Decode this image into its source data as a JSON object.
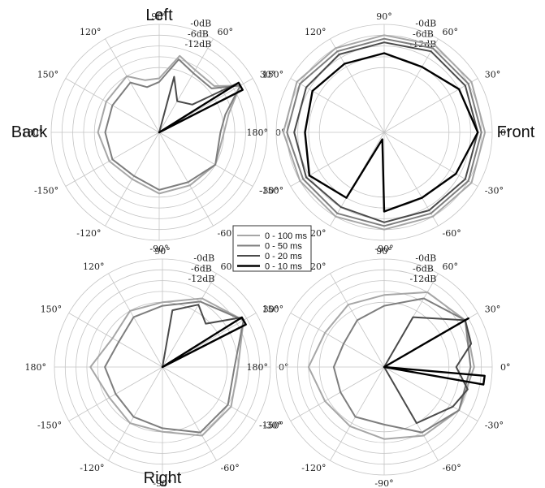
{
  "side_labels": {
    "left": "Left",
    "right": "Right",
    "back": "Back",
    "front": "Front"
  },
  "legend": [
    {
      "label": "0 - 100 ms",
      "color": "#a6a6a6",
      "width": 2.0
    },
    {
      "label": "0 - 50 ms",
      "color": "#7e7e7e",
      "width": 2.0
    },
    {
      "label": "0 - 20 ms",
      "color": "#4a4a4a",
      "width": 2.0
    },
    {
      "label": "0 - 10 ms",
      "color": "#000000",
      "width": 2.4
    }
  ],
  "chart_data": {
    "type": "polar",
    "angle_ticks": [
      "0°",
      "30°",
      "60°",
      "90°",
      "120°",
      "150°",
      "180°",
      "-150°",
      "-120°",
      "-90°",
      "-60°",
      "-30°"
    ],
    "db_ticks": [
      "-0dB",
      "-6dB",
      "-12dB"
    ],
    "radial_unit": "dB",
    "rlim": [
      -30,
      0
    ],
    "grid": true,
    "legend_position": "center",
    "panels": [
      {
        "position": "top-left",
        "series": [
          {
            "name": "0 - 100 ms",
            "angles": [
              -180,
              -150,
              -120,
              -90,
              -60,
              -30,
              0,
              15,
              30,
              40,
              60,
              75,
              90,
              105,
              120,
              150
            ],
            "values": [
              -13,
              -14,
              -15,
              -13,
              -13,
              -12,
              -12,
              -10,
              -4,
              -10,
              -10,
              -8,
              -15,
              -15,
              -12,
              -13
            ]
          },
          {
            "name": "0 - 50 ms",
            "angles": [
              -180,
              -150,
              -120,
              -90,
              -60,
              -30,
              0,
              15,
              30,
              40,
              60,
              75,
              90,
              105,
              120,
              150
            ],
            "values": [
              -15,
              -15,
              -16,
              -14,
              -14,
              -12,
              -13,
              -11,
              -4,
              -11,
              -11,
              -9,
              -16,
              -17,
              -14,
              -15
            ]
          },
          {
            "name": "0 - 20 ms",
            "angles": [
              -180,
              -150,
              -120,
              -90,
              -60,
              -30,
              0,
              15,
              27,
              32,
              40,
              60,
              75,
              90,
              110,
              180
            ],
            "values": [
              -30,
              -30,
              -30,
              -30,
              -30,
              -30,
              -30,
              -30,
              -4,
              -4,
              -18,
              -20,
              -14,
              -30,
              -30,
              -30
            ]
          },
          {
            "name": "0 - 10 ms",
            "angles": [
              -180,
              -90,
              0,
              27,
              32,
              60,
              90,
              180
            ],
            "values": [
              -30,
              -30,
              -30,
              -4,
              -4,
              -30,
              -30,
              -30
            ]
          }
        ]
      },
      {
        "position": "top-right",
        "series": [
          {
            "name": "0 - 100 ms",
            "angles": [
              -180,
              -150,
              -120,
              -90,
              -60,
              -30,
              0,
              30,
              60,
              90,
              120,
              150
            ],
            "values": [
              -2,
              -3,
              -3,
              -3,
              -3,
              -2,
              -2,
              -2,
              -2,
              -3,
              -3,
              -2
            ]
          },
          {
            "name": "0 - 50 ms",
            "angles": [
              -180,
              -150,
              -120,
              -90,
              -60,
              -30,
              0,
              30,
              60,
              90,
              120,
              150
            ],
            "values": [
              -3,
              -4,
              -4,
              -4,
              -4,
              -3,
              -3,
              -3,
              -3,
              -4,
              -4,
              -3
            ]
          },
          {
            "name": "0 - 20 ms",
            "angles": [
              -180,
              -150,
              -120,
              -90,
              -60,
              -30,
              0,
              30,
              60,
              90,
              120,
              150
            ],
            "values": [
              -5,
              -5,
              -6,
              -5,
              -5,
              -4,
              -4,
              -4,
              -4,
              -5,
              -5,
              -5
            ]
          },
          {
            "name": "0 - 10 ms",
            "angles": [
              -180,
              -150,
              -120,
              -105,
              -90,
              -60,
              -30,
              0,
              30,
              60,
              90,
              120,
              150
            ],
            "values": [
              -8,
              -6,
              -9,
              -28,
              -8,
              -9,
              -7,
              -4,
              -6,
              -9,
              -8,
              -8,
              -7
            ]
          }
        ]
      },
      {
        "position": "bottom-left",
        "series": [
          {
            "name": "0 - 100 ms",
            "angles": [
              -180,
              -150,
              -120,
              -90,
              -60,
              -30,
              0,
              30,
              60,
              90,
              120,
              150
            ],
            "values": [
              -10,
              -13,
              -12,
              -12,
              -8,
              -8,
              -9,
              -4,
              -8,
              -12,
              -12,
              -14
            ]
          },
          {
            "name": "0 - 50 ms",
            "angles": [
              -180,
              -150,
              -120,
              -90,
              -60,
              -30,
              0,
              30,
              60,
              90,
              120,
              150
            ],
            "values": [
              -14,
              -15,
              -14,
              -13,
              -9,
              -9,
              -10,
              -4,
              -9,
              -13,
              -14,
              -16
            ]
          },
          {
            "name": "0 - 20 ms",
            "angles": [
              -180,
              -120,
              -60,
              0,
              27,
              32,
              45,
              60,
              80,
              180
            ],
            "values": [
              -30,
              -30,
              -30,
              -30,
              -4,
              -4,
              -13,
              -10,
              -14,
              -30
            ]
          },
          {
            "name": "0 - 10 ms",
            "angles": [
              -180,
              -90,
              0,
              27,
              32,
              60,
              90,
              180
            ],
            "values": [
              -30,
              -30,
              -30,
              -4,
              -4,
              -30,
              -30,
              -30
            ]
          }
        ]
      },
      {
        "position": "bottom-right",
        "series": [
          {
            "name": "0 - 100 ms",
            "angles": [
              -180,
              -150,
              -120,
              -90,
              -60,
              -30,
              0,
              30,
              60,
              90,
              120,
              150
            ],
            "values": [
              -9,
              -11,
              -11,
              -10,
              -8,
              -6,
              -5,
              -4,
              -6,
              -10,
              -10,
              -11
            ]
          },
          {
            "name": "0 - 50 ms",
            "angles": [
              -180,
              -150,
              -120,
              -90,
              -60,
              -30,
              0,
              30,
              60,
              90,
              120,
              150
            ],
            "values": [
              -16,
              -16,
              -14,
              -14,
              -9,
              -6,
              -6,
              -4,
              -8,
              -13,
              -15,
              -17
            ]
          },
          {
            "name": "0 - 20 ms",
            "angles": [
              -180,
              -90,
              -60,
              -30,
              -15,
              0,
              15,
              30,
              60,
              90,
              180
            ],
            "values": [
              -30,
              -30,
              -12,
              -8,
              -6,
              -10,
              -5,
              -4,
              -14,
              -30,
              -30
            ]
          },
          {
            "name": "0 - 10 ms",
            "angles": [
              -180,
              -90,
              -10,
              -5,
              0,
              30,
              90,
              180
            ],
            "values": [
              -30,
              -30,
              -2,
              -2,
              -30,
              -3,
              -30,
              -30
            ]
          }
        ]
      }
    ]
  }
}
